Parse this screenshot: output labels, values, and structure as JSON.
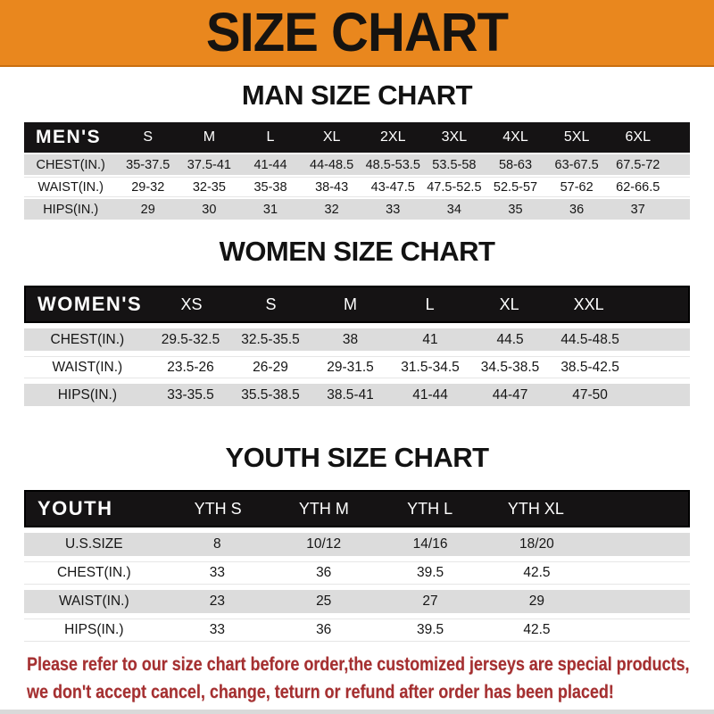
{
  "banner": {
    "title": "SIZE CHART"
  },
  "colors": {
    "banner_orange": "#e9871e",
    "header_bar_black": "#151314",
    "row_gray": "#dcdcdc",
    "disclaimer_red": "#a52f30"
  },
  "sections": [
    {
      "heading": "MAN SIZE CHART",
      "table": {
        "header_label": "MEN'S",
        "columns": [
          "S",
          "M",
          "L",
          "XL",
          "2XL",
          "3XL",
          "4XL",
          "5XL",
          "6XL"
        ],
        "rows": [
          {
            "label": "CHEST(IN.)",
            "values": [
              "35-37.5",
              "37.5-41",
              "41-44",
              "44-48.5",
              "48.5-53.5",
              "53.5-58",
              "58-63",
              "63-67.5",
              "67.5-72"
            ]
          },
          {
            "label": "WAIST(IN.)",
            "values": [
              "29-32",
              "32-35",
              "35-38",
              "38-43",
              "43-47.5",
              "47.5-52.5",
              "52.5-57",
              "57-62",
              "62-66.5"
            ]
          },
          {
            "label": "HIPS(IN.)",
            "values": [
              "29",
              "30",
              "31",
              "32",
              "33",
              "34",
              "35",
              "36",
              "37"
            ]
          }
        ]
      }
    },
    {
      "heading": "WOMEN SIZE CHART",
      "table": {
        "header_label": "WOMEN'S",
        "columns": [
          "XS",
          "S",
          "M",
          "L",
          "XL",
          "XXL"
        ],
        "rows": [
          {
            "label": "CHEST(IN.)",
            "values": [
              "29.5-32.5",
              "32.5-35.5",
              "38",
              "41",
              "44.5",
              "44.5-48.5"
            ]
          },
          {
            "label": "WAIST(IN.)",
            "values": [
              "23.5-26",
              "26-29",
              "29-31.5",
              "31.5-34.5",
              "34.5-38.5",
              "38.5-42.5"
            ]
          },
          {
            "label": "HIPS(IN.)",
            "values": [
              "33-35.5",
              "35.5-38.5",
              "38.5-41",
              "41-44",
              "44-47",
              "47-50"
            ]
          }
        ]
      }
    },
    {
      "heading": "YOUTH SIZE CHART",
      "table": {
        "header_label": "YOUTH",
        "columns": [
          "YTH S",
          "YTH M",
          "YTH L",
          "YTH XL"
        ],
        "rows": [
          {
            "label": "U.S.SIZE",
            "values": [
              "8",
              "10/12",
              "14/16",
              "18/20"
            ]
          },
          {
            "label": "CHEST(IN.)",
            "values": [
              "33",
              "36",
              "39.5",
              "42.5"
            ]
          },
          {
            "label": "WAIST(IN.)",
            "values": [
              "23",
              "25",
              "27",
              "29"
            ]
          },
          {
            "label": "HIPS(IN.)",
            "values": [
              "33",
              "36",
              "39.5",
              "42.5"
            ]
          }
        ]
      }
    }
  ],
  "footer": {
    "line1": "Please refer to our size chart before order,the customized jerseys are special products,",
    "line2": "we don't accept cancel, change, teturn or refund after order has been placed!"
  }
}
